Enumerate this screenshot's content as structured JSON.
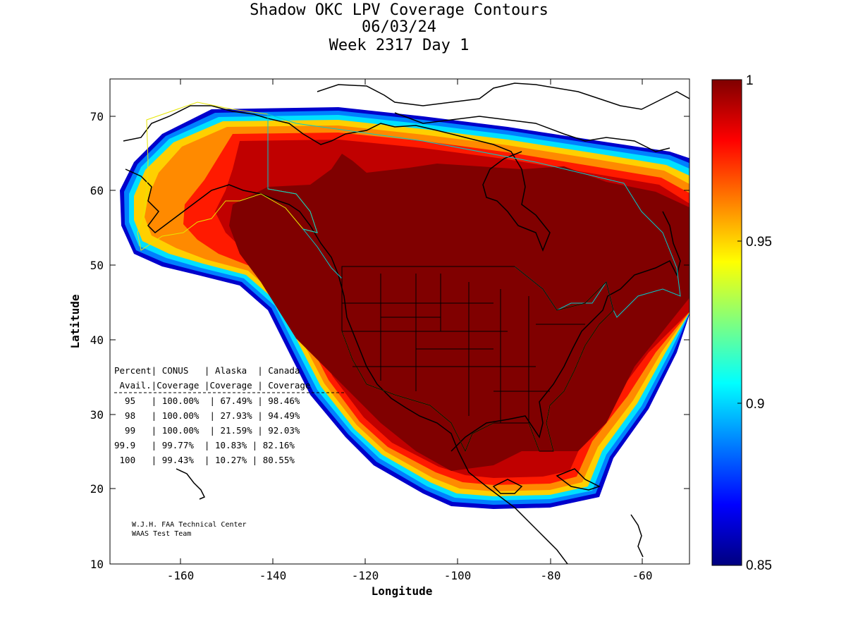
{
  "title": {
    "line1": "Shadow OKC LPV Coverage Contours",
    "line2": "06/03/24",
    "line3": "Week 2317 Day 1"
  },
  "axes": {
    "xlabel": "Longitude",
    "ylabel": "Latitude",
    "x_ticks": [
      "-160",
      "-140",
      "-120",
      "-100",
      "-80",
      "-60"
    ],
    "y_ticks": [
      "70",
      "60",
      "50",
      "40",
      "30",
      "20",
      "10"
    ]
  },
  "colorbar": {
    "ticks": [
      "1",
      "0.95",
      "0.9",
      "0.85"
    ],
    "colors": [
      "#00007f",
      "#0000ff",
      "#007fff",
      "#00ffff",
      "#7fff7f",
      "#ffff00",
      "#ff7f00",
      "#ff0000",
      "#7f0000"
    ]
  },
  "table": {
    "header1": "Percent| CONUS   | Alaska  | Canada",
    "header2": " Avail.|Coverage |Coverage | Coverage",
    "rows": [
      "  95   | 100.00%  | 67.49% | 98.46%",
      "  98   | 100.00%  | 27.93% | 94.49%",
      "  99   | 100.00%  | 21.59% | 92.03%",
      "99.9   | 99.77%  | 10.83% | 82.16%",
      " 100   | 99.43%  | 10.27% | 80.55%"
    ]
  },
  "credit": {
    "line1": "W.J.H. FAA Technical Center",
    "line2": "WAAS Test Team"
  },
  "chart_data": {
    "type": "heatmap",
    "title": "Shadow OKC LPV Coverage Contours",
    "xlabel": "Longitude",
    "ylabel": "Latitude",
    "xlim": [
      -175,
      -50
    ],
    "ylim": [
      10,
      75
    ],
    "color_range": [
      0.85,
      1
    ],
    "coverage_table": {
      "columns": [
        "Percent Avail.",
        "CONUS Coverage",
        "Alaska Coverage",
        "Canada Coverage"
      ],
      "rows": [
        [
          "95",
          "100.00%",
          "67.49%",
          "98.46%"
        ],
        [
          "98",
          "100.00%",
          "27.93%",
          "94.49%"
        ],
        [
          "99",
          "100.00%",
          "21.59%",
          "92.03%"
        ],
        [
          "99.9",
          "99.77%",
          "10.83%",
          "82.16%"
        ],
        [
          "100",
          "99.43%",
          "10.27%",
          "80.55%"
        ]
      ]
    }
  }
}
